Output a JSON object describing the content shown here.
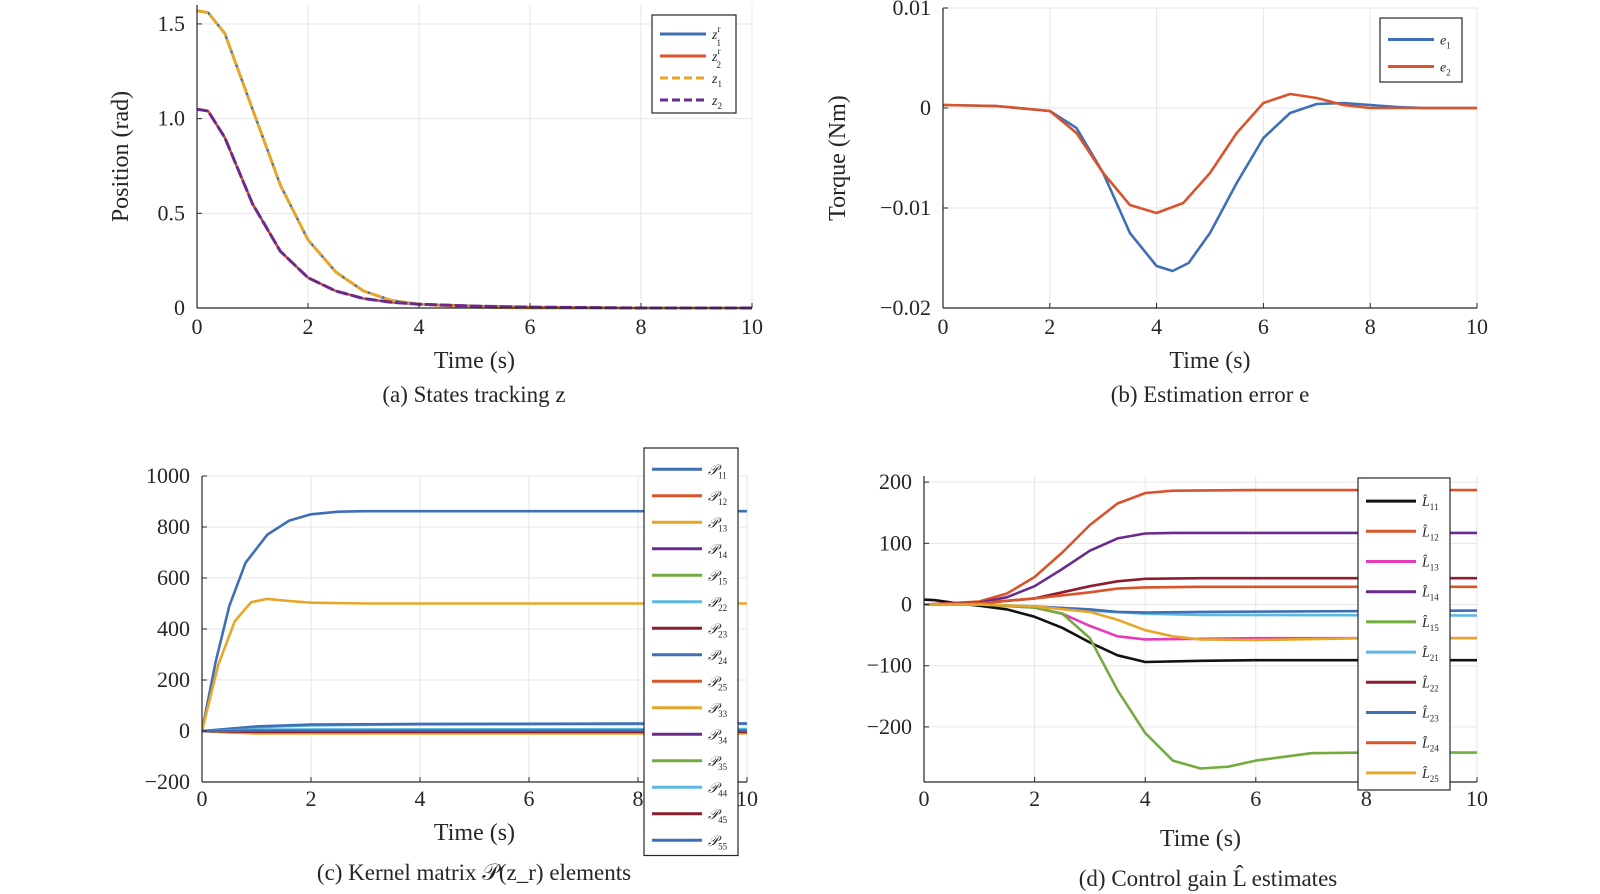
{
  "chart_data": [
    {
      "id": "a",
      "type": "line",
      "caption": "(a) States tracking z",
      "xlabel": "Time (s)",
      "ylabel": "Position (rad)",
      "xlim": [
        0,
        10
      ],
      "ylim": [
        0,
        1.6
      ],
      "xticks": [
        0,
        2,
        4,
        6,
        8,
        10
      ],
      "xtick_labels": [
        "0",
        "2",
        "4",
        "6",
        "8",
        "10"
      ],
      "yticks": [
        0,
        0.5,
        1.0,
        1.5
      ],
      "ytick_labels": [
        "0",
        "0.5",
        "1.0",
        "1.5"
      ],
      "grid": true,
      "legend_position": "top-right",
      "series": [
        {
          "name": "z",
          "sub": "1",
          "sup": "r",
          "color": "#3f6fb6",
          "style": "solid",
          "x": [
            0,
            0.2,
            0.5,
            1,
            1.5,
            2,
            2.5,
            3,
            3.5,
            4,
            5,
            6,
            8,
            10
          ],
          "y": [
            1.57,
            1.56,
            1.45,
            1.05,
            0.65,
            0.36,
            0.19,
            0.09,
            0.04,
            0.02,
            0.005,
            0,
            0,
            0
          ]
        },
        {
          "name": "z",
          "sub": "2",
          "sup": "r",
          "color": "#d9532b",
          "style": "solid",
          "x": [
            0,
            0.2,
            0.5,
            1,
            1.5,
            2,
            2.5,
            3,
            3.5,
            4,
            5,
            6,
            8,
            10
          ],
          "y": [
            1.05,
            1.04,
            0.9,
            0.55,
            0.3,
            0.16,
            0.09,
            0.05,
            0.03,
            0.02,
            0.01,
            0.005,
            0,
            0
          ]
        },
        {
          "name": "z",
          "sub": "1",
          "sup": "",
          "color": "#e7a628",
          "style": "dashed",
          "x": [
            0,
            0.2,
            0.5,
            1,
            1.5,
            2,
            2.5,
            3,
            3.5,
            4,
            5,
            6,
            8,
            10
          ],
          "y": [
            1.57,
            1.56,
            1.45,
            1.05,
            0.65,
            0.36,
            0.19,
            0.09,
            0.04,
            0.02,
            0.005,
            0,
            0,
            0
          ]
        },
        {
          "name": "z",
          "sub": "2",
          "sup": "",
          "color": "#6b2b8e",
          "style": "dashed",
          "x": [
            0,
            0.2,
            0.5,
            1,
            1.5,
            2,
            2.5,
            3,
            3.5,
            4,
            5,
            6,
            8,
            10
          ],
          "y": [
            1.05,
            1.04,
            0.9,
            0.55,
            0.3,
            0.16,
            0.09,
            0.05,
            0.03,
            0.02,
            0.01,
            0.005,
            0,
            0
          ]
        }
      ]
    },
    {
      "id": "b",
      "type": "line",
      "caption": "(b) Estimation error e",
      "xlabel": "Time (s)",
      "ylabel": "Torque (Nm)",
      "xlim": [
        0,
        10
      ],
      "ylim": [
        -0.02,
        0.01
      ],
      "xticks": [
        0,
        2,
        4,
        6,
        8,
        10
      ],
      "xtick_labels": [
        "0",
        "2",
        "4",
        "6",
        "8",
        "10"
      ],
      "yticks": [
        -0.02,
        -0.01,
        0,
        0.01
      ],
      "ytick_labels": [
        "−0.02",
        "−0.01",
        "0",
        "0.01"
      ],
      "grid": true,
      "legend_position": "top-right",
      "series": [
        {
          "name": "e",
          "sub": "1",
          "sup": "",
          "color": "#3f6fb6",
          "style": "solid",
          "x": [
            0,
            1,
            2,
            2.5,
            3,
            3.5,
            4,
            4.3,
            4.6,
            5,
            5.5,
            6,
            6.5,
            7,
            7.5,
            8,
            8.5,
            9,
            10
          ],
          "y": [
            0.0003,
            0.0002,
            -0.0003,
            -0.002,
            -0.0065,
            -0.0125,
            -0.0158,
            -0.0163,
            -0.0155,
            -0.0125,
            -0.0075,
            -0.003,
            -0.0005,
            0.0004,
            0.0005,
            0.0003,
            0.0001,
            0,
            0
          ]
        },
        {
          "name": "e",
          "sub": "2",
          "sup": "",
          "color": "#d9532b",
          "style": "solid",
          "x": [
            0,
            1,
            2,
            2.5,
            3,
            3.5,
            4,
            4.5,
            5,
            5.5,
            6,
            6.5,
            7,
            7.5,
            8,
            9,
            10
          ],
          "y": [
            0.0003,
            0.0002,
            -0.0003,
            -0.0025,
            -0.0065,
            -0.0097,
            -0.0105,
            -0.0095,
            -0.0065,
            -0.0025,
            0.0005,
            0.0014,
            0.001,
            0.0003,
            0,
            0,
            0
          ]
        }
      ]
    },
    {
      "id": "c",
      "type": "line",
      "caption": "(c) Kernel matrix 𝒫(z_r) elements",
      "xlabel": "Time (s)",
      "ylabel": "",
      "xlim": [
        0,
        10
      ],
      "ylim": [
        -200,
        1000
      ],
      "xticks": [
        0,
        2,
        4,
        6,
        8,
        10
      ],
      "xtick_labels": [
        "0",
        "2",
        "4",
        "6",
        "8",
        "10"
      ],
      "yticks": [
        -200,
        0,
        200,
        400,
        600,
        800,
        1000
      ],
      "ytick_labels": [
        "−200",
        "0",
        "200",
        "400",
        "600",
        "800",
        "1000"
      ],
      "grid": true,
      "legend_position": "right",
      "series": [
        {
          "name": "𝒫",
          "sub": "11",
          "color": "#3f6fb6",
          "x": [
            0,
            0.25,
            0.5,
            0.8,
            1.2,
            1.6,
            2,
            2.5,
            3,
            10
          ],
          "y": [
            0,
            270,
            490,
            660,
            770,
            825,
            850,
            860,
            862,
            862
          ]
        },
        {
          "name": "𝒫",
          "sub": "12",
          "color": "#d9532b",
          "x": [
            0,
            0.5,
            1,
            10
          ],
          "y": [
            0,
            -5,
            -8,
            -8
          ]
        },
        {
          "name": "𝒫",
          "sub": "13",
          "color": "#e7a628",
          "x": [
            0,
            0.3,
            0.6,
            0.9,
            1.2,
            1.6,
            2,
            3,
            10
          ],
          "y": [
            0,
            260,
            430,
            505,
            518,
            510,
            503,
            500,
            500
          ]
        },
        {
          "name": "𝒫",
          "sub": "14",
          "color": "#6b2b8e",
          "x": [
            0,
            0.5,
            1,
            10
          ],
          "y": [
            0,
            -5,
            -8,
            -8
          ]
        },
        {
          "name": "𝒫",
          "sub": "15",
          "color": "#72ac3f",
          "x": [
            0,
            1,
            10
          ],
          "y": [
            0,
            2,
            2
          ]
        },
        {
          "name": "𝒫",
          "sub": "22",
          "color": "#5db8e1",
          "x": [
            0,
            1,
            2,
            4,
            10
          ],
          "y": [
            0,
            15,
            22,
            26,
            28
          ]
        },
        {
          "name": "𝒫",
          "sub": "23",
          "color": "#8c1d2f",
          "x": [
            0,
            0.5,
            1,
            10
          ],
          "y": [
            0,
            -4,
            -6,
            -6
          ]
        },
        {
          "name": "𝒫",
          "sub": "24",
          "color": "#3f6fb6",
          "x": [
            0,
            1,
            2,
            4,
            10
          ],
          "y": [
            0,
            18,
            25,
            28,
            30
          ]
        },
        {
          "name": "𝒫",
          "sub": "25",
          "color": "#d9532b",
          "x": [
            0,
            1,
            10
          ],
          "y": [
            0,
            3,
            3
          ]
        },
        {
          "name": "𝒫",
          "sub": "33",
          "color": "#e7a628",
          "x": [
            0,
            0.5,
            1,
            10
          ],
          "y": [
            0,
            -6,
            -10,
            -10
          ]
        },
        {
          "name": "𝒫",
          "sub": "34",
          "color": "#6b2b8e",
          "x": [
            0,
            1,
            10
          ],
          "y": [
            0,
            1,
            1
          ]
        },
        {
          "name": "𝒫",
          "sub": "35",
          "color": "#72ac3f",
          "x": [
            0,
            1,
            10
          ],
          "y": [
            0,
            0,
            0
          ]
        },
        {
          "name": "𝒫",
          "sub": "44",
          "color": "#5db8e1",
          "x": [
            0,
            1,
            10
          ],
          "y": [
            0,
            6,
            8
          ]
        },
        {
          "name": "𝒫",
          "sub": "45",
          "color": "#8c1d2f",
          "x": [
            0,
            0.5,
            1,
            10
          ],
          "y": [
            0,
            -2,
            -3,
            -3
          ]
        },
        {
          "name": "𝒫",
          "sub": "55",
          "color": "#3f6fb6",
          "x": [
            0,
            1,
            10
          ],
          "y": [
            0,
            2,
            2
          ]
        }
      ]
    },
    {
      "id": "d",
      "type": "line",
      "caption": "(d) Control gain L̂ estimates",
      "xlabel": "Time (s)",
      "ylabel": "",
      "xlim": [
        0,
        10
      ],
      "ylim": [
        -290,
        210
      ],
      "xticks": [
        0,
        2,
        4,
        6,
        8,
        10
      ],
      "xtick_labels": [
        "0",
        "2",
        "4",
        "6",
        "8",
        "10"
      ],
      "yticks": [
        -200,
        -100,
        0,
        100,
        200
      ],
      "ytick_labels": [
        "−200",
        "−100",
        "0",
        "100",
        "200"
      ],
      "grid": true,
      "legend_position": "top-right",
      "series": [
        {
          "name": "L̂",
          "sub": "11",
          "color": "#111111",
          "x": [
            0,
            0.2,
            0.6,
            1,
            1.5,
            2,
            2.5,
            3,
            3.5,
            4,
            5,
            6,
            8,
            10
          ],
          "y": [
            8,
            7,
            2,
            -2,
            -8,
            -20,
            -38,
            -62,
            -83,
            -94,
            -92,
            -91,
            -91,
            -91
          ]
        },
        {
          "name": "L̂",
          "sub": "12",
          "color": "#d9532b",
          "x": [
            0,
            1,
            1.5,
            2,
            2.5,
            3,
            3.5,
            4,
            4.5,
            6,
            10
          ],
          "y": [
            0,
            5,
            18,
            45,
            85,
            130,
            165,
            182,
            186,
            187,
            187
          ]
        },
        {
          "name": "L̂",
          "sub": "13",
          "color": "#e63ab8",
          "x": [
            0,
            1,
            2,
            2.5,
            3,
            3.5,
            4,
            5,
            6,
            8,
            10
          ],
          "y": [
            0,
            0,
            -5,
            -15,
            -35,
            -52,
            -57,
            -56,
            -55,
            -55,
            -55
          ]
        },
        {
          "name": "L̂",
          "sub": "14",
          "color": "#6b2b8e",
          "x": [
            0,
            1,
            1.5,
            2,
            2.5,
            3,
            3.5,
            4,
            4.5,
            6,
            10
          ],
          "y": [
            0,
            3,
            12,
            30,
            58,
            88,
            108,
            116,
            117,
            117,
            117
          ]
        },
        {
          "name": "L̂",
          "sub": "15",
          "color": "#72ac3f",
          "x": [
            0,
            1,
            2,
            2.5,
            3,
            3.5,
            4,
            4.5,
            5,
            5.5,
            6,
            7,
            8,
            10
          ],
          "y": [
            0,
            0,
            -5,
            -15,
            -55,
            -140,
            -210,
            -255,
            -268,
            -265,
            -255,
            -243,
            -242,
            -242
          ]
        },
        {
          "name": "L̂",
          "sub": "21",
          "color": "#5db8e1",
          "x": [
            0,
            1,
            2,
            3,
            4,
            5,
            10
          ],
          "y": [
            0,
            0,
            -3,
            -10,
            -15,
            -17,
            -18
          ]
        },
        {
          "name": "L̂",
          "sub": "22",
          "color": "#8c1d2f",
          "x": [
            0,
            1,
            2,
            2.5,
            3,
            3.5,
            4,
            5,
            10
          ],
          "y": [
            0,
            2,
            10,
            20,
            30,
            38,
            42,
            43,
            43
          ]
        },
        {
          "name": "L̂",
          "sub": "23",
          "color": "#3f6fb6",
          "x": [
            0,
            1,
            2,
            3,
            3.5,
            4,
            5,
            10
          ],
          "y": [
            0,
            0,
            -3,
            -8,
            -12,
            -13,
            -12,
            -10
          ]
        },
        {
          "name": "L̂",
          "sub": "24",
          "color": "#d9532b",
          "x": [
            0,
            1,
            2,
            3,
            3.5,
            4,
            5,
            10
          ],
          "y": [
            0,
            2,
            10,
            20,
            26,
            28,
            29,
            29
          ]
        },
        {
          "name": "L̂",
          "sub": "25",
          "color": "#e7a628",
          "x": [
            0,
            1,
            2,
            3,
            3.5,
            4,
            4.5,
            5,
            6,
            8,
            10
          ],
          "y": [
            0,
            0,
            -3,
            -12,
            -25,
            -42,
            -52,
            -57,
            -58,
            -55,
            -55
          ]
        }
      ]
    }
  ]
}
